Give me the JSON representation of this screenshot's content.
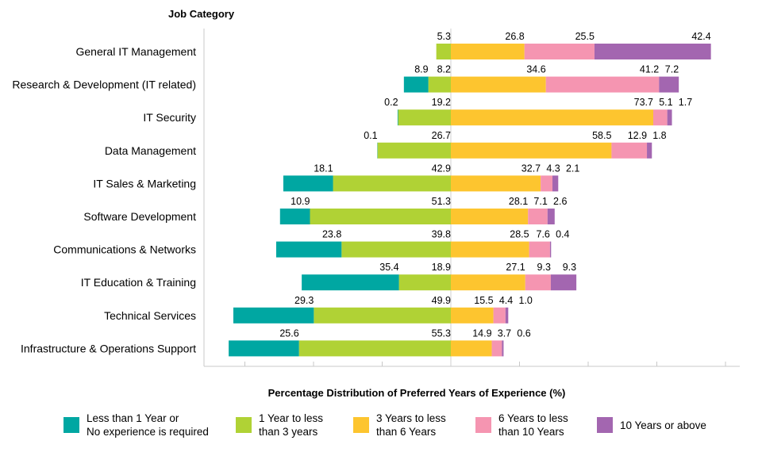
{
  "chart_data": {
    "type": "bar",
    "orientation": "horizontal",
    "stacking": "diverging",
    "ylabel": "Job Category",
    "xlabel": "Percentage Distribution of Preferred Years of Experience (%)",
    "categories": [
      "General IT Management",
      "Research & Development (IT related)",
      "IT Security",
      "Data Management",
      "IT Sales & Marketing",
      "Software Development",
      "Communications & Networks",
      "IT Education & Training",
      "Technical Services",
      "Infrastructure & Operations Support"
    ],
    "series": [
      {
        "name": "Less than 1 Year or No experience is required",
        "legend_lines": [
          "Less than 1 Year or",
          "No experience is required"
        ],
        "color": "#00a7a2",
        "side": "left",
        "values": [
          "",
          8.9,
          0.2,
          0.1,
          18.1,
          10.9,
          23.8,
          35.4,
          29.3,
          25.6
        ]
      },
      {
        "name": "1 Year to less than 3 years",
        "legend_lines": [
          "1 Year to less",
          "than 3 years"
        ],
        "color": "#b0d235",
        "side": "left",
        "values": [
          5.3,
          8.2,
          19.2,
          26.7,
          42.9,
          51.3,
          39.8,
          18.9,
          49.9,
          55.3
        ]
      },
      {
        "name": "3 Years to less than 6 Years",
        "legend_lines": [
          "3 Years to less",
          "than 6 Years"
        ],
        "color": "#fdc52f",
        "side": "right",
        "values": [
          26.8,
          34.6,
          73.7,
          58.5,
          32.7,
          28.1,
          28.5,
          27.1,
          15.5,
          14.9
        ]
      },
      {
        "name": "6 Years to less than 10 Years",
        "legend_lines": [
          "6 Years to less",
          "than 10 Years"
        ],
        "color": "#f595b1",
        "side": "right",
        "values": [
          25.5,
          41.2,
          5.1,
          12.9,
          4.3,
          7.1,
          7.6,
          9.3,
          4.4,
          3.7
        ]
      },
      {
        "name": "10 Years or above",
        "legend_lines": [
          "10 Years or above"
        ],
        "color": "#a366b0",
        "side": "right",
        "values": [
          42.4,
          7.2,
          1.7,
          1.8,
          2.1,
          2.6,
          0.4,
          9.3,
          1.0,
          0.6
        ]
      }
    ]
  }
}
